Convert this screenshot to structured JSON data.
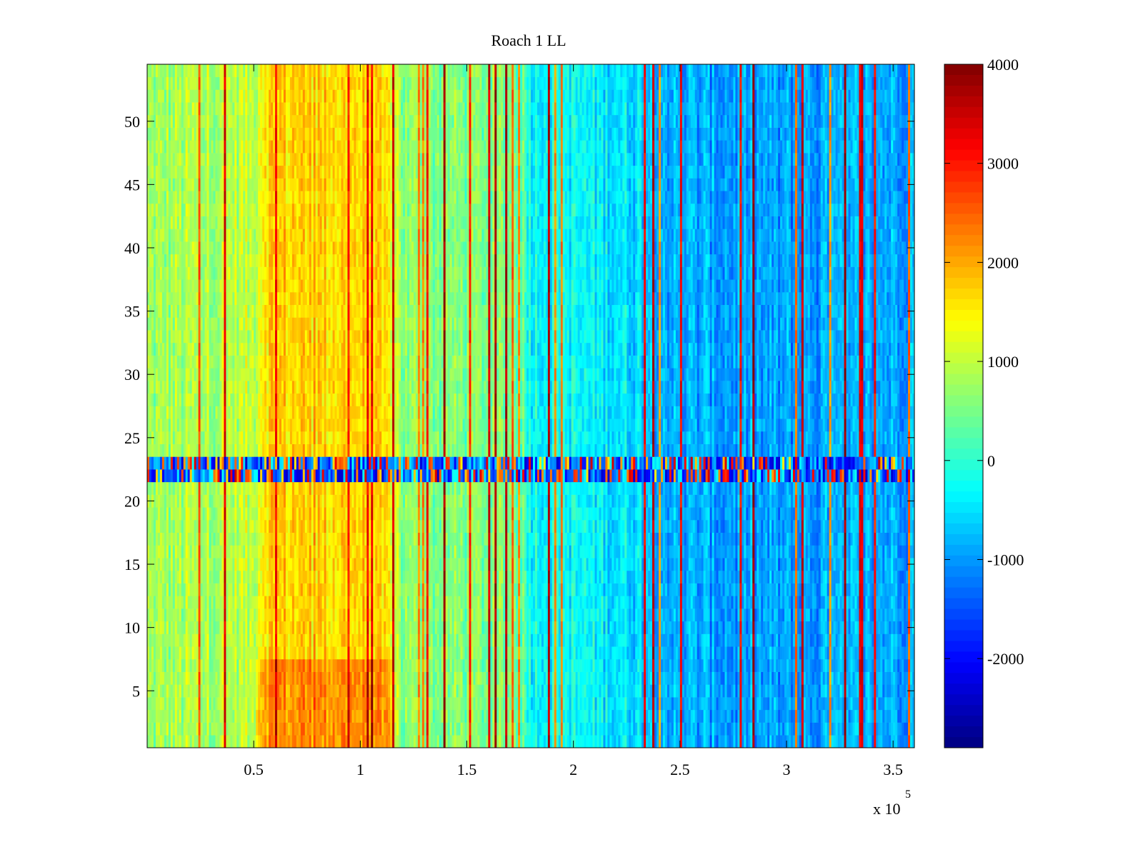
{
  "chart_data": {
    "type": "heatmap",
    "title": "Roach 1 LL",
    "xlabel": "",
    "ylabel": "",
    "x_multiplier_label": {
      "base": "x 10",
      "exponent": "5"
    },
    "xlim": [
      0,
      3.6
    ],
    "ylim": [
      0.5,
      54.5
    ],
    "x_ticks": [
      {
        "value": 0.5,
        "label": "0.5"
      },
      {
        "value": 1,
        "label": "1"
      },
      {
        "value": 1.5,
        "label": "1.5"
      },
      {
        "value": 2,
        "label": "2"
      },
      {
        "value": 2.5,
        "label": "2.5"
      },
      {
        "value": 3,
        "label": "3"
      },
      {
        "value": 3.5,
        "label": "3.5"
      }
    ],
    "y_ticks": [
      {
        "value": 5,
        "label": "5"
      },
      {
        "value": 10,
        "label": "10"
      },
      {
        "value": 15,
        "label": "15"
      },
      {
        "value": 20,
        "label": "20"
      },
      {
        "value": 25,
        "label": "25"
      },
      {
        "value": 30,
        "label": "30"
      },
      {
        "value": 35,
        "label": "35"
      },
      {
        "value": 40,
        "label": "40"
      },
      {
        "value": 45,
        "label": "45"
      },
      {
        "value": 50,
        "label": "50"
      }
    ],
    "colorbar": {
      "colormap": "jet",
      "range": [
        -2900,
        4000
      ],
      "ticks": [
        {
          "value": 4000,
          "label": "4000"
        },
        {
          "value": 3000,
          "label": "3000"
        },
        {
          "value": 2000,
          "label": "2000"
        },
        {
          "value": 1000,
          "label": "1000"
        },
        {
          "value": 0,
          "label": "0"
        },
        {
          "value": -1000,
          "label": "-1000"
        },
        {
          "value": -2000,
          "label": "-2000"
        }
      ]
    },
    "rows": 54,
    "columns": 360,
    "band_profile": [
      {
        "x": 0.0,
        "value": 700
      },
      {
        "x": 0.5,
        "value": 1000
      },
      {
        "x": 0.55,
        "value": 1700
      },
      {
        "x": 1.0,
        "value": 1700
      },
      {
        "x": 1.15,
        "value": 1400
      },
      {
        "x": 1.2,
        "value": 600
      },
      {
        "x": 1.75,
        "value": 500
      },
      {
        "x": 1.8,
        "value": -200
      },
      {
        "x": 2.3,
        "value": -500
      },
      {
        "x": 2.5,
        "value": -900
      },
      {
        "x": 3.0,
        "value": -1000
      },
      {
        "x": 3.4,
        "value": -900
      },
      {
        "x": 3.6,
        "value": -800
      }
    ],
    "anomaly_rows": [
      22,
      23
    ],
    "grid": false
  },
  "colors": {
    "axis": "#000000",
    "background": "#ffffff"
  }
}
